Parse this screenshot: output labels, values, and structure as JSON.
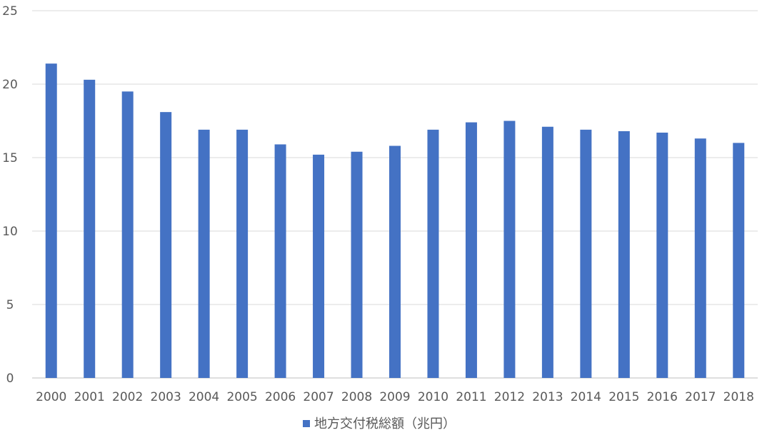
{
  "chart_data": {
    "type": "bar",
    "categories": [
      "2000",
      "2001",
      "2002",
      "2003",
      "2004",
      "2005",
      "2006",
      "2007",
      "2008",
      "2009",
      "2010",
      "2011",
      "2012",
      "2013",
      "2014",
      "2015",
      "2016",
      "2017",
      "2018"
    ],
    "series": [
      {
        "name": "地方交付税総額（兆円）",
        "color": "#4472c4",
        "values": [
          21.4,
          20.3,
          19.5,
          18.1,
          16.9,
          16.9,
          15.9,
          15.2,
          15.4,
          15.8,
          16.9,
          17.4,
          17.5,
          17.1,
          16.9,
          16.8,
          16.7,
          16.3,
          16.0
        ]
      }
    ],
    "ylim": [
      0,
      25
    ],
    "yticks": [
      "0",
      "5",
      "10",
      "15",
      "20",
      "25"
    ],
    "grid": true,
    "legend_position": "bottom",
    "xlabel": "",
    "ylabel": ""
  }
}
